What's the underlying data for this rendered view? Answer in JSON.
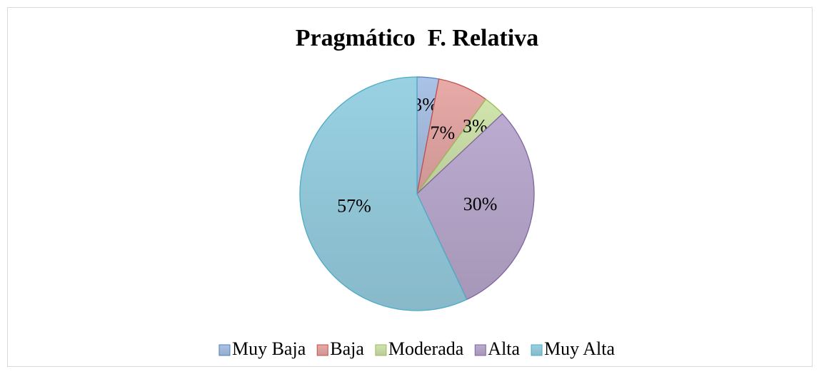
{
  "chart_data": {
    "type": "pie",
    "title": "Pragmático  F. Relativa",
    "categories": [
      "Muy Baja",
      "Baja",
      "Moderada",
      "Alta",
      "Muy Alta"
    ],
    "values": [
      3,
      7,
      3,
      30,
      57
    ],
    "value_labels": [
      "3%",
      "7%",
      "3%",
      "30%",
      "57%"
    ],
    "colors": [
      "#a3bbdd",
      "#dfa3a1",
      "#c9dca6",
      "#b4a4c8",
      "#93c9da"
    ],
    "legend": "bottom"
  }
}
